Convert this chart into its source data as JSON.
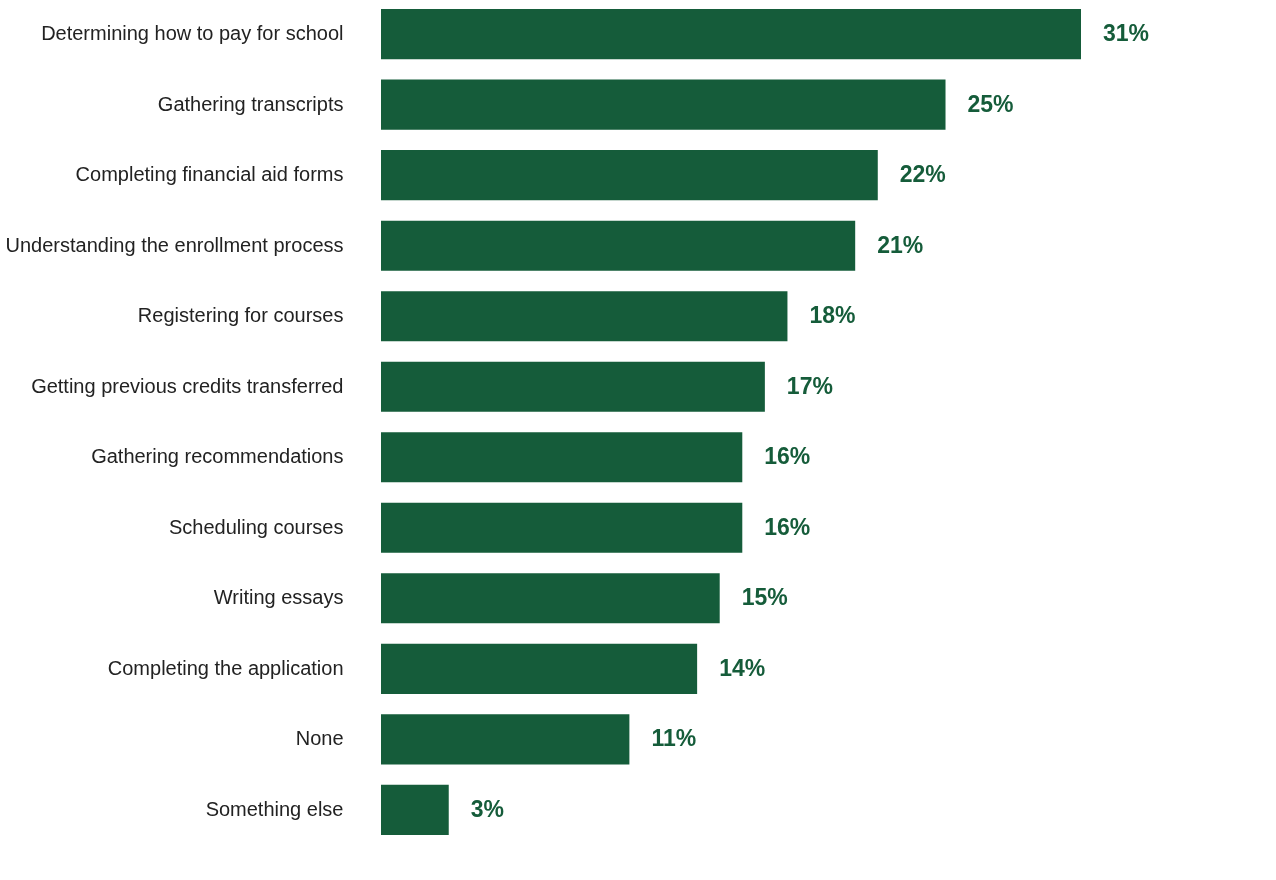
{
  "chart_data": {
    "type": "bar",
    "orientation": "horizontal",
    "categories": [
      "Determining how to pay for school",
      "Gathering transcripts",
      "Completing financial aid forms",
      "Understanding the enrollment process",
      "Registering for courses",
      "Getting previous credits transferred",
      "Gathering recommendations",
      "Scheduling courses",
      "Writing essays",
      "Completing the application",
      "None",
      "Something else"
    ],
    "values": [
      31,
      25,
      22,
      21,
      18,
      17,
      16,
      16,
      15,
      14,
      11,
      3
    ],
    "value_labels": [
      "31%",
      "25%",
      "22%",
      "21%",
      "18%",
      "17%",
      "16%",
      "16%",
      "15%",
      "14%",
      "11%",
      "3%"
    ],
    "color": "#155c3a"
  }
}
